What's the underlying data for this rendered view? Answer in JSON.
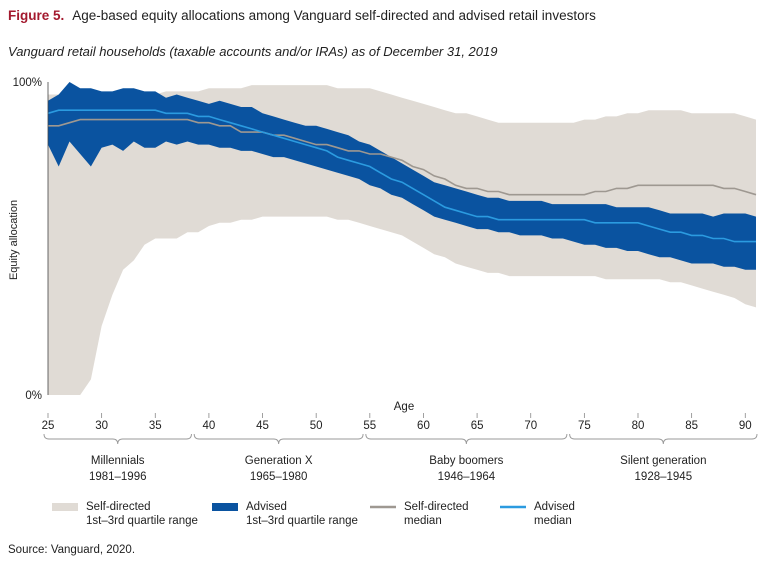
{
  "header": {
    "figure_label": "Figure 5.",
    "title": "Age-based equity allocations among Vanguard self-directed and advised retail investors",
    "subtitle": "Vanguard retail households (taxable accounts and/or IRAs) as of December 31, 2019"
  },
  "source": "Source: Vanguard, 2020.",
  "colors": {
    "self_directed_band": "#e0dbd5",
    "advised_band": "#0a53a0",
    "self_directed_median": "#9e9891",
    "advised_median": "#2b9be0"
  },
  "chart_data": {
    "type": "area",
    "xlabel": "Age",
    "ylabel": "Equity allocation",
    "xlim": [
      25,
      91
    ],
    "ylim": [
      0,
      100
    ],
    "y_tick_labels": [
      "0%",
      "100%"
    ],
    "x_ticks": [
      25,
      30,
      35,
      40,
      45,
      50,
      55,
      60,
      65,
      70,
      75,
      80,
      85,
      90
    ],
    "generations": [
      {
        "name": "Millennials",
        "years": "1981–1996",
        "from": 25,
        "to": 38
      },
      {
        "name": "Generation X",
        "years": "1965–1980",
        "from": 39,
        "to": 54
      },
      {
        "name": "Baby boomers",
        "years": "1946–1964",
        "from": 55,
        "to": 73
      },
      {
        "name": "Silent generation",
        "years": "1928–1945",
        "from": 74,
        "to": 91
      }
    ],
    "ages": [
      25,
      26,
      27,
      28,
      29,
      30,
      31,
      32,
      33,
      34,
      35,
      36,
      37,
      38,
      39,
      40,
      41,
      42,
      43,
      44,
      45,
      46,
      47,
      48,
      49,
      50,
      51,
      52,
      53,
      54,
      55,
      56,
      57,
      58,
      59,
      60,
      61,
      62,
      63,
      64,
      65,
      66,
      67,
      68,
      69,
      70,
      71,
      72,
      73,
      74,
      75,
      76,
      77,
      78,
      79,
      80,
      81,
      82,
      83,
      84,
      85,
      86,
      87,
      88,
      89,
      90,
      91
    ],
    "series": [
      {
        "name": "Self-directed 1st–3rd quartile range",
        "kind": "band",
        "low": [
          0,
          0,
          0,
          0,
          5,
          22,
          32,
          40,
          43,
          48,
          50,
          50,
          50,
          52,
          52,
          54,
          55,
          55,
          56,
          56,
          57,
          57,
          57,
          57,
          57,
          57,
          57,
          56,
          56,
          55,
          54,
          53,
          52,
          51,
          49,
          47,
          45,
          44,
          42,
          41,
          40,
          39,
          39,
          38,
          38,
          38,
          38,
          38,
          38,
          38,
          38,
          38,
          37,
          37,
          37,
          37,
          37,
          37,
          36,
          36,
          35,
          34,
          33,
          32,
          31,
          29,
          28
        ],
        "high": [
          96,
          96,
          96,
          95,
          95,
          95,
          95,
          95,
          96,
          96,
          96,
          97,
          97,
          97,
          97,
          98,
          98,
          98,
          98,
          99,
          99,
          99,
          99,
          99,
          99,
          99,
          99,
          98,
          98,
          98,
          98,
          97,
          96,
          95,
          94,
          93,
          92,
          91,
          90,
          90,
          89,
          88,
          87,
          87,
          87,
          87,
          87,
          87,
          87,
          87,
          88,
          88,
          89,
          89,
          90,
          90,
          91,
          91,
          91,
          91,
          90,
          90,
          90,
          90,
          90,
          89,
          88
        ]
      },
      {
        "name": "Advised 1st–3rd quartile range",
        "kind": "band",
        "low": [
          80,
          73,
          81,
          77,
          73,
          79,
          80,
          78,
          81,
          79,
          79,
          81,
          80,
          81,
          80,
          80,
          79,
          79,
          78,
          78,
          77,
          76,
          76,
          75,
          74,
          73,
          72,
          71,
          70,
          69,
          67,
          66,
          64,
          63,
          61,
          59,
          57,
          56,
          55,
          54,
          53,
          53,
          52,
          52,
          51,
          51,
          51,
          50,
          50,
          49,
          48,
          48,
          47,
          47,
          46,
          46,
          45,
          44,
          44,
          43,
          42,
          42,
          42,
          41,
          41,
          40,
          40
        ],
        "high": [
          94,
          96,
          100,
          98,
          98,
          97,
          97,
          98,
          98,
          97,
          97,
          95,
          96,
          95,
          94,
          93,
          94,
          93,
          92,
          92,
          90,
          89,
          88,
          87,
          86,
          86,
          85,
          84,
          83,
          81,
          80,
          78,
          76,
          74,
          72,
          70,
          68,
          67,
          66,
          65,
          64,
          63,
          63,
          62,
          62,
          62,
          62,
          61,
          61,
          61,
          61,
          61,
          61,
          60,
          60,
          60,
          60,
          59,
          58,
          58,
          58,
          58,
          57,
          58,
          58,
          58,
          57
        ]
      },
      {
        "name": "Self-directed median",
        "kind": "line",
        "values": [
          86,
          86,
          87,
          88,
          88,
          88,
          88,
          88,
          88,
          88,
          88,
          88,
          88,
          88,
          87,
          87,
          86,
          86,
          84,
          84,
          84,
          83,
          83,
          82,
          81,
          80,
          80,
          79,
          78,
          78,
          77,
          77,
          76,
          75,
          73,
          72,
          70,
          69,
          67,
          66,
          66,
          65,
          65,
          64,
          64,
          64,
          64,
          64,
          64,
          64,
          64,
          65,
          65,
          66,
          66,
          67,
          67,
          67,
          67,
          67,
          67,
          67,
          67,
          66,
          66,
          65,
          64
        ]
      },
      {
        "name": "Advised median",
        "kind": "line",
        "values": [
          90,
          91,
          91,
          91,
          91,
          91,
          91,
          91,
          91,
          91,
          91,
          90,
          90,
          90,
          89,
          89,
          88,
          87,
          86,
          85,
          84,
          83,
          82,
          81,
          80,
          79,
          78,
          76,
          75,
          74,
          73,
          71,
          69,
          68,
          66,
          64,
          62,
          60,
          59,
          58,
          57,
          57,
          56,
          56,
          56,
          56,
          56,
          56,
          56,
          56,
          56,
          55,
          55,
          55,
          55,
          55,
          54,
          53,
          52,
          52,
          51,
          51,
          50,
          50,
          49,
          49,
          49
        ]
      }
    ],
    "legend_placement": "bottom"
  },
  "legend": [
    {
      "line1": "Self-directed",
      "line2": "1st–3rd quartile range"
    },
    {
      "line1": "Advised",
      "line2": "1st–3rd quartile range"
    },
    {
      "line1": "Self-directed",
      "line2": "median"
    },
    {
      "line1": "Advised",
      "line2": "median"
    }
  ]
}
